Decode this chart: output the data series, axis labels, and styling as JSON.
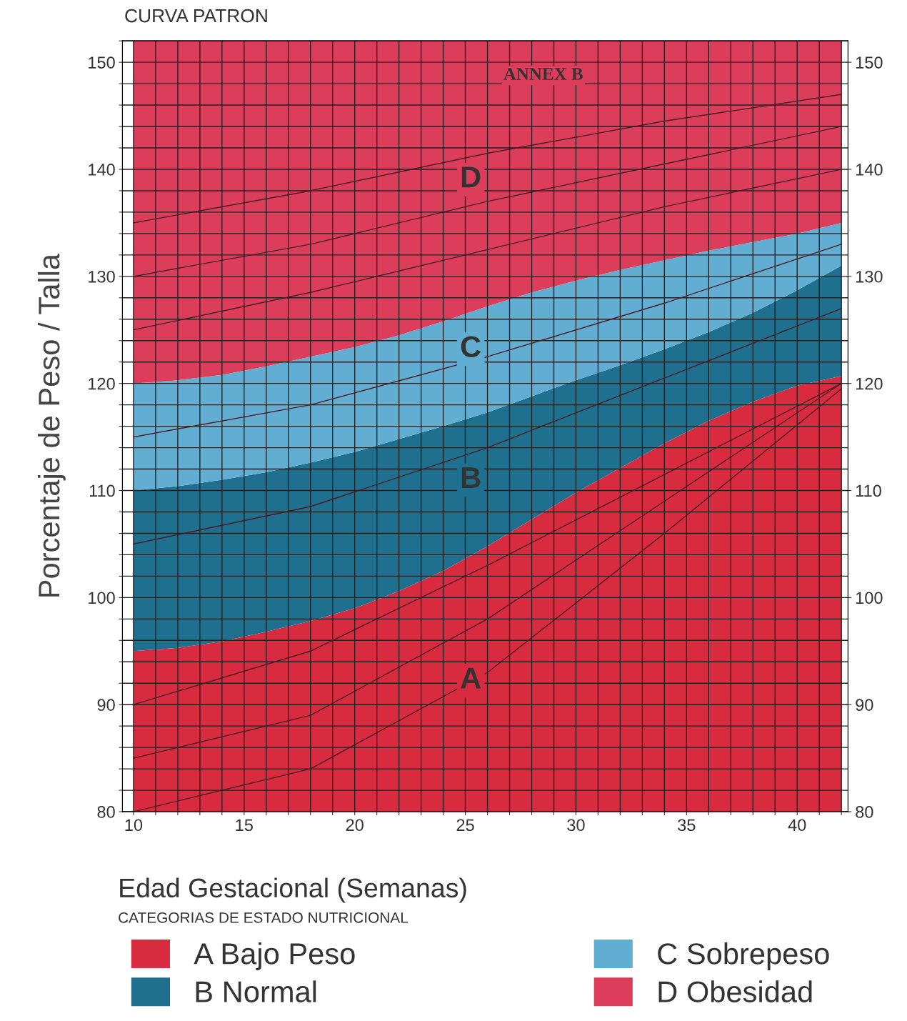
{
  "chart_data": {
    "type": "area",
    "title": "CURVA PATRON",
    "xlabel": "Edad Gestacional (Semanas)",
    "ylabel": "Porcentaje de Peso / Talla",
    "legend_title": "CATEGORIAS DE ESTADO NUTRICIONAL",
    "legend": "bottom",
    "grid": true,
    "x": [
      10,
      12,
      14,
      16,
      18,
      20,
      22,
      24,
      26,
      28,
      30,
      32,
      34,
      36,
      38,
      40,
      42
    ],
    "series": [
      {
        "name": "A Bajo Peso",
        "color": "#d92b40",
        "values": [
          95,
          95.3,
          95.9,
          96.8,
          97.8,
          99,
          100.6,
          102.5,
          104.8,
          107.3,
          109.8,
          112.1,
          114.4,
          116.5,
          118.3,
          119.8,
          120.7
        ]
      },
      {
        "name": "B Normal",
        "color": "#1f6f8f",
        "values": [
          110,
          110.4,
          111,
          111.7,
          112.6,
          113.6,
          114.8,
          116,
          117.3,
          118.8,
          120.3,
          121.7,
          123.2,
          124.8,
          126.6,
          128.7,
          131
        ]
      },
      {
        "name": "C Sobrepeso",
        "color": "#62aed3",
        "values": [
          120,
          120.3,
          120.8,
          121.6,
          122.5,
          123.4,
          124.5,
          125.8,
          127.2,
          128.5,
          129.6,
          130.6,
          131.5,
          132.4,
          133.2,
          134,
          135
        ]
      },
      {
        "name": "D Obesidad",
        "color": "#dc3d5a",
        "values": [
          152,
          152,
          152,
          152,
          152,
          152,
          152,
          152,
          152,
          152,
          152,
          152,
          152,
          152,
          152,
          152,
          152
        ]
      },
      {
        "type": "line",
        "color": "#4a1a22",
        "x": [
          10,
          18,
          26,
          34,
          42
        ],
        "values": [
          135,
          138,
          141.5,
          144.5,
          147
        ]
      },
      {
        "type": "line",
        "color": "#4a1a22",
        "x": [
          10,
          18,
          26,
          34,
          42
        ],
        "values": [
          130,
          133,
          137,
          140.5,
          144
        ]
      },
      {
        "type": "line",
        "color": "#4a1a22",
        "x": [
          10,
          18,
          26,
          34,
          42
        ],
        "values": [
          125,
          128.5,
          132.5,
          136.5,
          140
        ]
      },
      {
        "type": "line",
        "color": "#4a1a22",
        "x": [
          10,
          18,
          26,
          34,
          42
        ],
        "values": [
          115,
          118,
          122.5,
          127.5,
          133
        ]
      },
      {
        "type": "line",
        "color": "#4a1a22",
        "x": [
          10,
          18,
          26,
          34,
          42
        ],
        "values": [
          105,
          108.5,
          114,
          120.5,
          127
        ]
      },
      {
        "type": "line",
        "color": "#4a1a22",
        "x": [
          10,
          18,
          26,
          34,
          42
        ],
        "values": [
          90,
          95,
          103,
          111.5,
          120
        ]
      },
      {
        "type": "line",
        "color": "#4a1a22",
        "x": [
          10,
          18,
          26,
          34,
          42
        ],
        "values": [
          85,
          89,
          98,
          109,
          120
        ]
      },
      {
        "type": "line",
        "color": "#4a1a22",
        "x": [
          10,
          18,
          26,
          34,
          42
        ],
        "values": [
          80,
          84,
          93,
          106,
          119.5
        ]
      }
    ],
    "annotations": [
      "ANNEX B",
      "A",
      "B",
      "C",
      "D"
    ],
    "xlim": [
      9.5,
      42.3
    ],
    "ylim": [
      80,
      152
    ],
    "y2lim": [
      80,
      152
    ],
    "xticks": [
      {
        "value": 10,
        "label": "10"
      },
      {
        "value": 11,
        "label": null
      },
      {
        "value": 12,
        "label": null
      },
      {
        "value": 13,
        "label": null
      },
      {
        "value": 14,
        "label": null
      },
      {
        "value": 15,
        "label": "15"
      },
      {
        "value": 16,
        "label": null
      },
      {
        "value": 17,
        "label": null
      },
      {
        "value": 18,
        "label": null
      },
      {
        "value": 19,
        "label": null
      },
      {
        "value": 20,
        "label": "20"
      },
      {
        "value": 21,
        "label": null
      },
      {
        "value": 22,
        "label": null
      },
      {
        "value": 23,
        "label": null
      },
      {
        "value": 24,
        "label": null
      },
      {
        "value": 25,
        "label": "25"
      },
      {
        "value": 26,
        "label": null
      },
      {
        "value": 27,
        "label": null
      },
      {
        "value": 28,
        "label": null
      },
      {
        "value": 29,
        "label": null
      },
      {
        "value": 30,
        "label": "30"
      },
      {
        "value": 31,
        "label": null
      },
      {
        "value": 32,
        "label": null
      },
      {
        "value": 33,
        "label": null
      },
      {
        "value": 34,
        "label": null
      },
      {
        "value": 35,
        "label": "35"
      },
      {
        "value": 36,
        "label": null
      },
      {
        "value": 37,
        "label": null
      },
      {
        "value": 38,
        "label": null
      },
      {
        "value": 39,
        "label": null
      },
      {
        "value": 40,
        "label": "40"
      },
      {
        "value": 41,
        "label": null
      },
      {
        "value": 42,
        "label": null
      }
    ],
    "yticks": [
      80,
      {
        "value": 82,
        "label": null
      },
      {
        "value": 84,
        "label": null
      },
      {
        "value": 86,
        "label": null
      },
      {
        "value": 88,
        "label": null
      },
      90,
      {
        "value": 92,
        "label": null
      },
      {
        "value": 94,
        "label": null
      },
      {
        "value": 96,
        "label": null
      },
      {
        "value": 98,
        "label": null
      },
      100,
      {
        "value": 102,
        "label": null
      },
      {
        "value": 104,
        "label": null
      },
      {
        "value": 106,
        "label": null
      },
      {
        "value": 108,
        "label": null
      },
      110,
      {
        "value": 112,
        "label": null
      },
      {
        "value": 114,
        "label": null
      },
      {
        "value": 116,
        "label": null
      },
      {
        "value": 118,
        "label": null
      },
      120,
      {
        "value": 122,
        "label": null
      },
      {
        "value": 124,
        "label": null
      },
      {
        "value": 126,
        "label": null
      },
      {
        "value": 128,
        "label": null
      },
      130,
      {
        "value": 132,
        "label": null
      },
      {
        "value": 134,
        "label": null
      },
      {
        "value": 136,
        "label": null
      },
      {
        "value": 138,
        "label": null
      },
      140,
      {
        "value": 142,
        "label": null
      },
      {
        "value": 144,
        "label": null
      },
      {
        "value": 146,
        "label": null
      },
      {
        "value": 148,
        "label": null
      },
      150,
      {
        "value": 152,
        "label": null
      }
    ],
    "y2ticks": [
      80,
      90,
      100,
      110,
      120,
      130,
      140,
      150
    ]
  }
}
